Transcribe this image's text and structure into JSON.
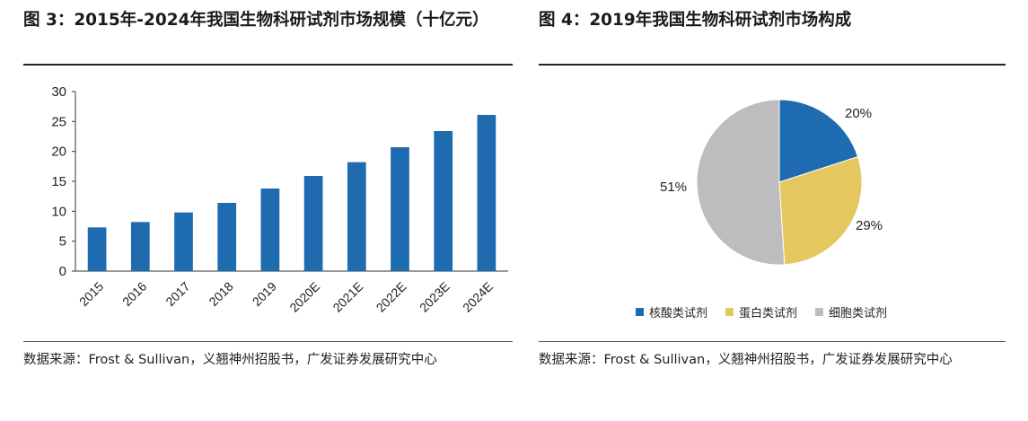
{
  "left": {
    "title": "图 3：2015年-2024年我国生物科研试剂市场规模（十亿元）",
    "source": "数据来源：Frost & Sullivan，义翘神州招股书，广发证券发展研究中心"
  },
  "right": {
    "title": "图 4：2019年我国生物科研试剂市场构成",
    "source": "数据来源：Frost & Sullivan，义翘神州招股书，广发证券发展研究中心"
  },
  "chart_data": [
    {
      "type": "bar",
      "title": "图 3：2015年-2024年我国生物科研试剂市场规模（十亿元）",
      "categories": [
        "2015",
        "2016",
        "2017",
        "2018",
        "2019",
        "2020E",
        "2021E",
        "2022E",
        "2023E",
        "2024E"
      ],
      "values": [
        7.3,
        8.2,
        9.8,
        11.4,
        13.8,
        15.9,
        18.2,
        20.7,
        23.4,
        26.1
      ],
      "ylim": [
        0,
        30
      ],
      "yticks": [
        0,
        5,
        10,
        15,
        20,
        25,
        30
      ],
      "color": "#1f6bb0",
      "grid": false
    },
    {
      "type": "pie",
      "title": "图 4：2019年我国生物科研试剂市场构成",
      "labels": [
        "核酸类试剂",
        "蛋白类试剂",
        "细胞类试剂"
      ],
      "values": [
        20,
        29,
        51
      ],
      "value_labels": [
        "20%",
        "29%",
        "51%"
      ],
      "colors": [
        "#1f6bb0",
        "#e5c760",
        "#bdbdbd"
      ],
      "legend_position": "bottom"
    }
  ]
}
